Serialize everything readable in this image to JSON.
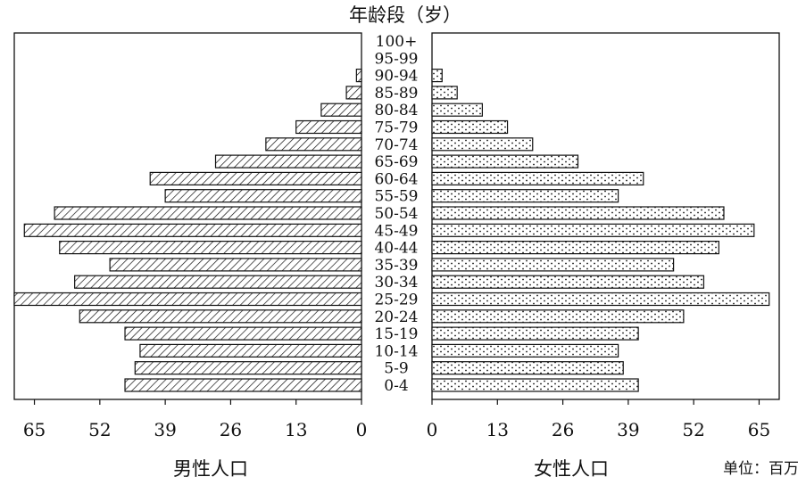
{
  "chart_data": {
    "type": "bar",
    "orientation": "horizontal",
    "subtype": "population-pyramid",
    "title": "年龄段（岁）",
    "unit_label": "单位：百万",
    "categories": [
      "100+",
      "95-99",
      "90-94",
      "85-89",
      "80-84",
      "75-79",
      "70-74",
      "65-69",
      "60-64",
      "55-59",
      "50-54",
      "45-49",
      "40-44",
      "35-39",
      "30-34",
      "25-29",
      "20-24",
      "15-19",
      "10-14",
      "5-9",
      "0-4"
    ],
    "series": [
      {
        "name": "男性人口",
        "side": "left",
        "pattern": "diagonal-hatch",
        "values": [
          0,
          0,
          1,
          3,
          8,
          13,
          19,
          29,
          42,
          39,
          61,
          67,
          60,
          50,
          57,
          69,
          56,
          47,
          44,
          45,
          47
        ]
      },
      {
        "name": "女性人口",
        "side": "right",
        "pattern": "dotted",
        "values": [
          0,
          0,
          2,
          5,
          10,
          15,
          20,
          29,
          42,
          37,
          58,
          64,
          57,
          48,
          54,
          67,
          50,
          41,
          37,
          38,
          41
        ]
      }
    ],
    "male_axis": {
      "ticks": [
        "65",
        "52",
        "39",
        "26",
        "13",
        "0"
      ],
      "range": [
        0,
        69
      ]
    },
    "female_axis": {
      "ticks": [
        "0",
        "13",
        "26",
        "39",
        "52",
        "65"
      ],
      "range": [
        0,
        69
      ]
    },
    "grid": false,
    "legend": "none"
  }
}
